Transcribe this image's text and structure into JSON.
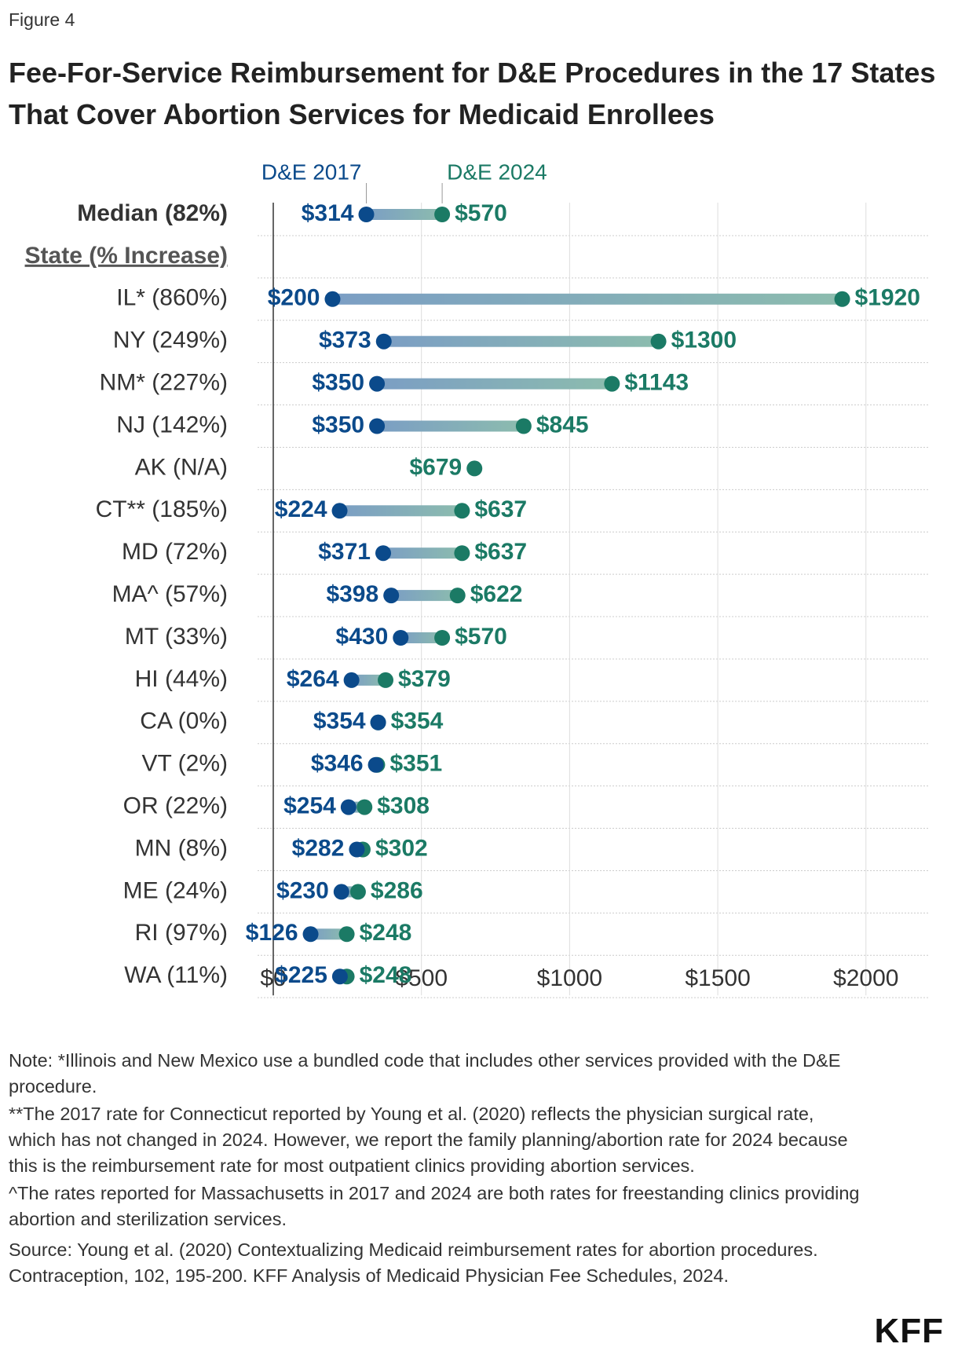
{
  "figure_label": "Figure 4",
  "chart_data": {
    "type": "dumbbell",
    "title": "Fee-For-Service Reimbursement for D&E Procedures in the 17 States That Cover Abortion Services for Medicaid Enrollees",
    "categories": [
      "Median (82%)",
      "State (% Increase)",
      "IL* (860%)",
      "NY (249%)",
      "NM* (227%)",
      "NJ (142%)",
      "AK (N/A)",
      "CT** (185%)",
      "MD (72%)",
      "MA^ (57%)",
      "MT (33%)",
      "HI (44%)",
      "CA (0%)",
      "VT (2%)",
      "OR (22%)",
      "MN (8%)",
      "ME (24%)",
      "RI (97%)",
      "WA (11%)"
    ],
    "series": [
      {
        "name": "D&E 2017",
        "color": "#0b4a8b",
        "values": [
          314,
          null,
          200,
          373,
          350,
          350,
          null,
          224,
          371,
          398,
          430,
          264,
          354,
          346,
          254,
          282,
          230,
          126,
          225
        ],
        "value_labels": [
          "$314",
          null,
          "$200",
          "$373",
          "$350",
          "$350",
          null,
          "$224",
          "$371",
          "$398",
          "$430",
          "$264",
          "$354",
          "$346",
          "$254",
          "$282",
          "$230",
          "$126",
          "$225"
        ]
      },
      {
        "name": "D&E 2024",
        "color": "#1b7a65",
        "values": [
          570,
          null,
          1920,
          1300,
          1143,
          845,
          679,
          637,
          637,
          622,
          570,
          379,
          354,
          351,
          308,
          302,
          286,
          248,
          248
        ],
        "value_labels": [
          "$570",
          null,
          "$1920",
          "$1300",
          "$1143",
          "$845",
          "$679",
          "$637",
          "$637",
          "$622",
          "$570",
          "$379",
          "$354",
          "$351",
          "$308",
          "$302",
          "$286",
          "$248",
          "$248"
        ]
      }
    ],
    "xlim": [
      0,
      2210
    ],
    "xticks": [
      {
        "value": 0,
        "label": "$0"
      },
      {
        "value": 500,
        "label": "$500"
      },
      {
        "value": 1000,
        "label": "$1000"
      },
      {
        "value": 1500,
        "label": "$1500"
      },
      {
        "value": 2000,
        "label": "$2000"
      }
    ],
    "grid": true
  },
  "notes": [
    "Note: *Illinois and New Mexico use a bundled code that includes other services provided with the D&E procedure.",
    "**The 2017 rate for Connecticut reported by Young et al. (2020) reflects the physician surgical rate, which has not changed in 2024. However, we report the family planning/abortion rate for 2024 because this is the reimbursement rate for most outpatient clinics providing abortion services.",
    "^The rates reported for Massachusetts in 2017 and 2024 are both rates for freestanding clinics providing abortion and sterilization services."
  ],
  "source": "Source: Young et al. (2020) Contextualizing Medicaid reimbursement rates for abortion procedures. Contraception, 102, 195-200. KFF Analysis of Medicaid Physician Fee Schedules, 2024.",
  "logo": "KFF"
}
